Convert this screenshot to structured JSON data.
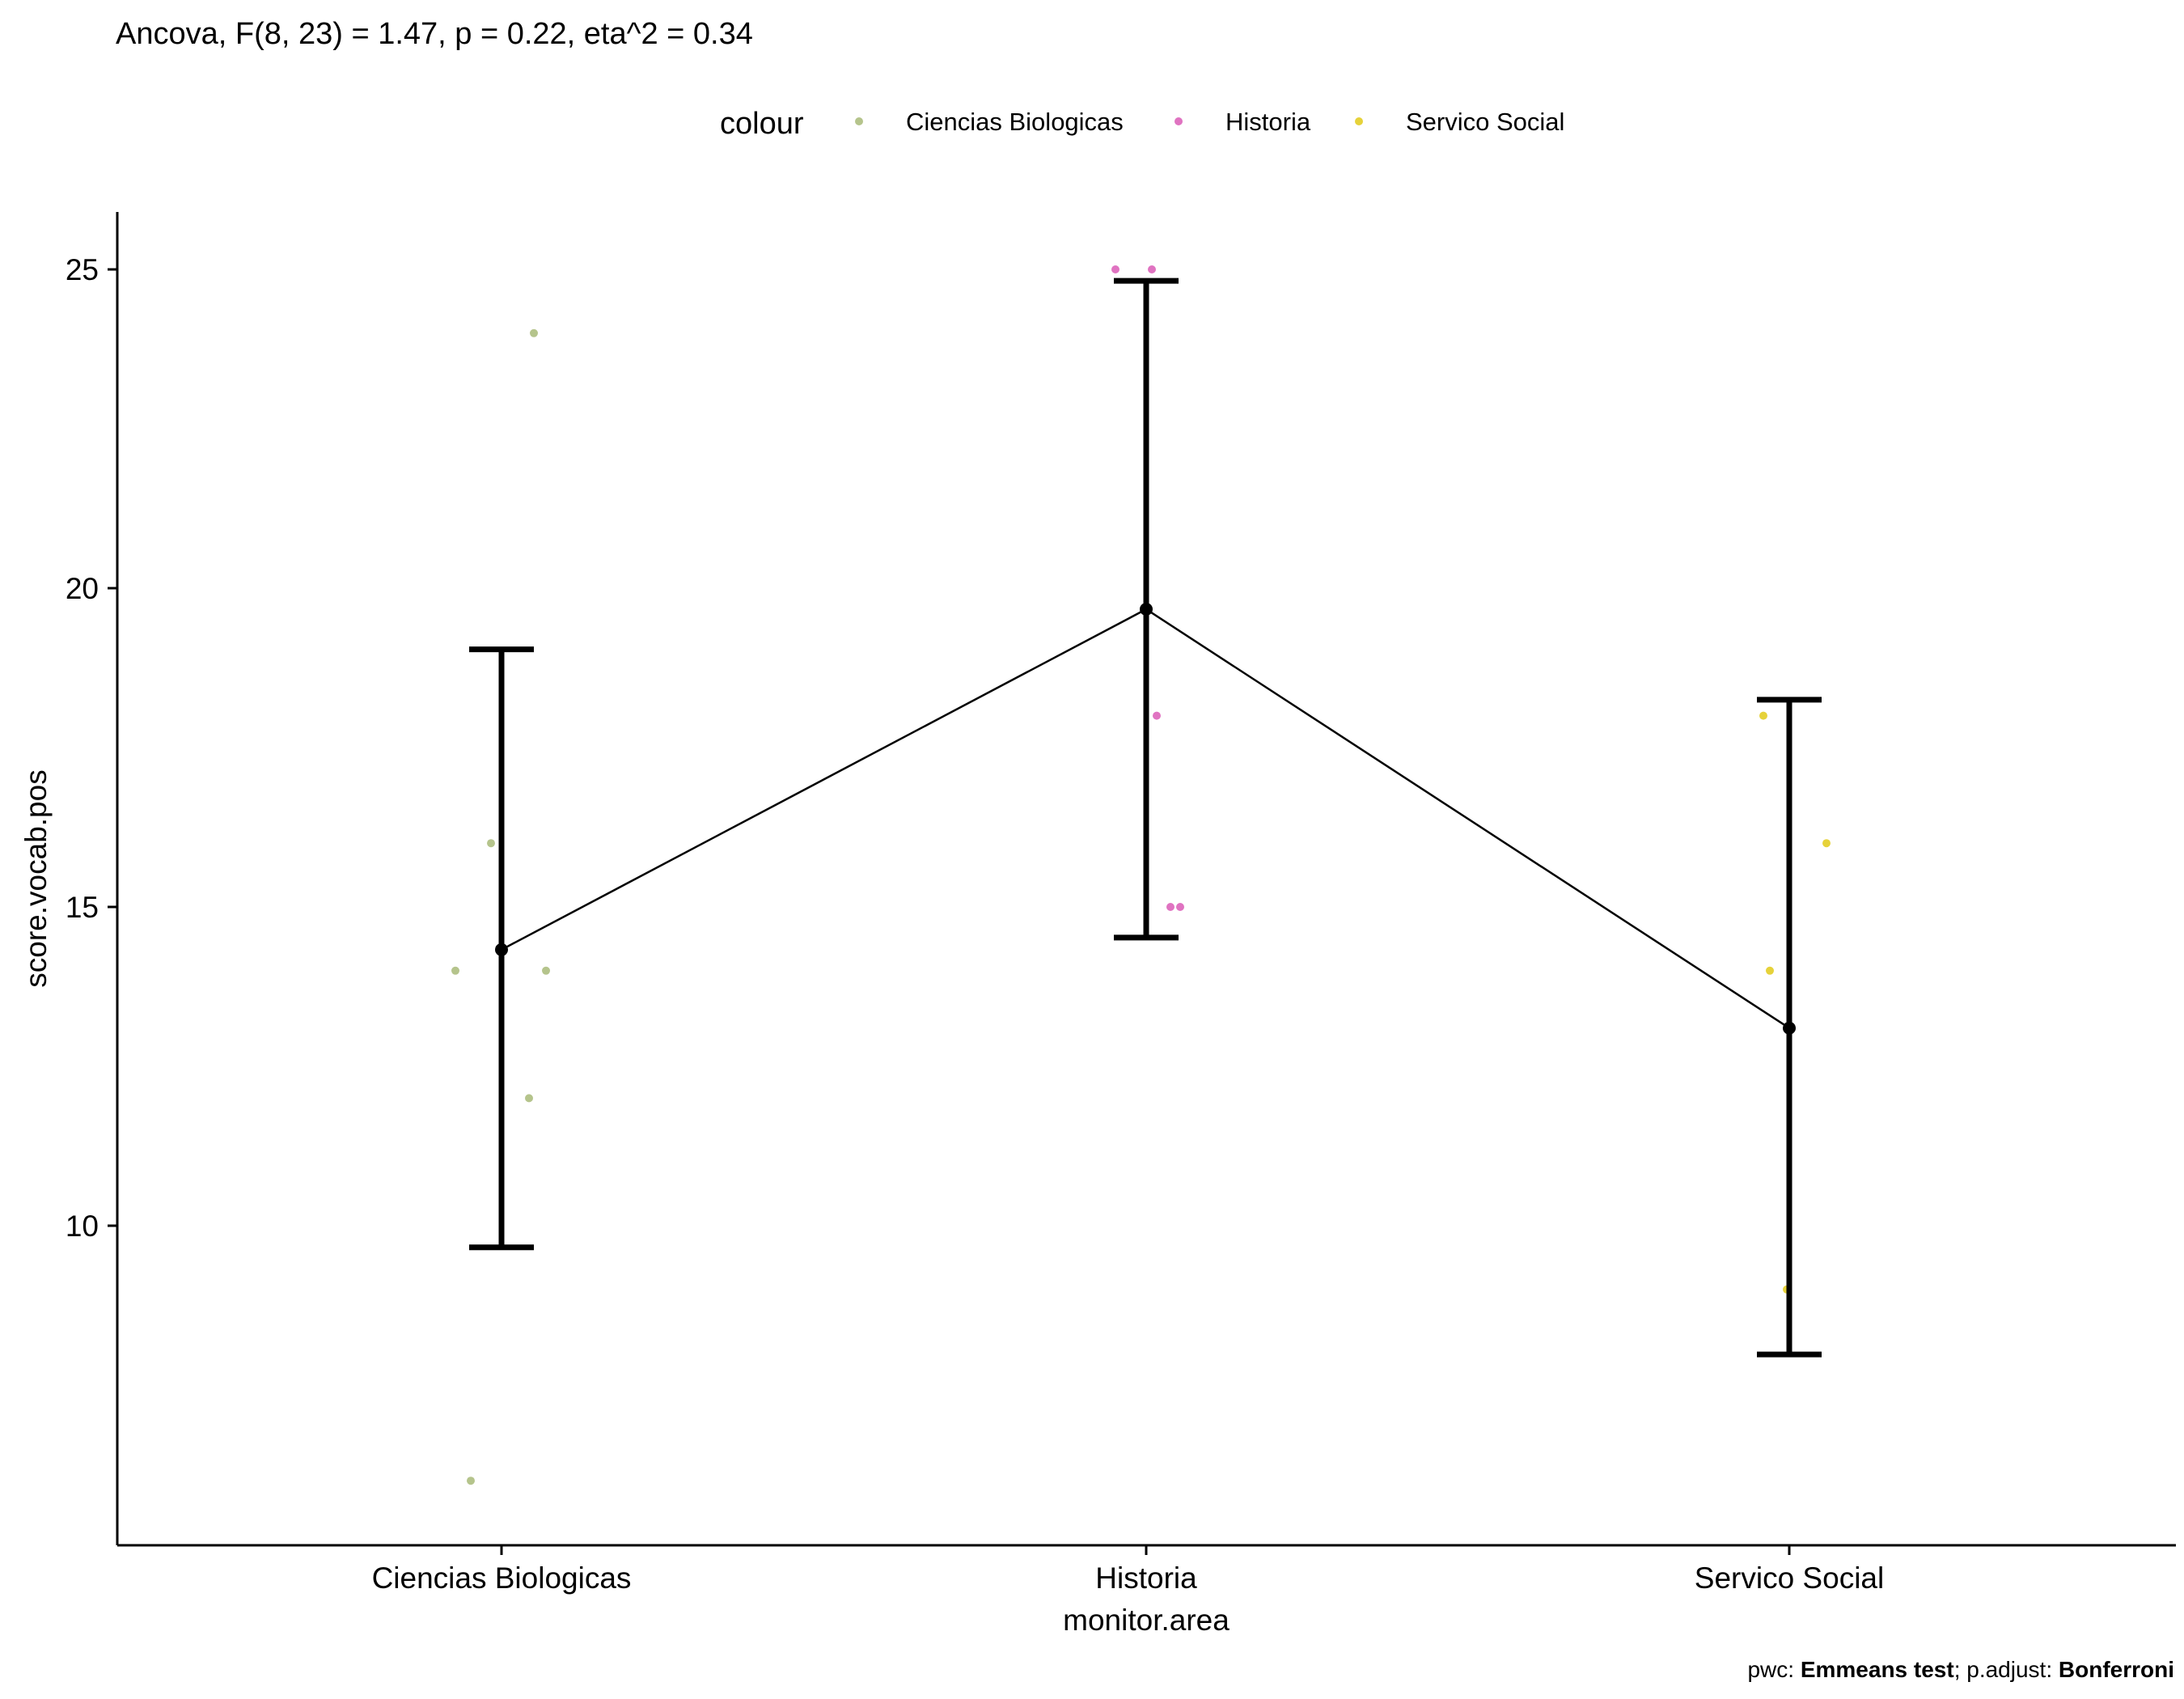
{
  "chart_data": {
    "type": "scatter",
    "title": "Ancova, F(8, 23) = 1.47, p = 0.22, eta^2 = 0.34",
    "xlabel": "monitor.area",
    "ylabel": "score.vocab.pos",
    "categories": [
      "Ciencias Biologicas",
      "Historia",
      "Servico Social"
    ],
    "yticks": [
      "10",
      "15",
      "20",
      "25"
    ],
    "ylim": [
      5.2,
      26.0
    ],
    "legend": {
      "title": "colour",
      "position": "top",
      "items": [
        "Ciencias Biologicas",
        "Historia",
        "Servico Social"
      ]
    },
    "colors": {
      "Ciencias Biologicas": "#b5c48c",
      "Historia": "#e073c1",
      "Servico Social": "#e6d23a",
      "summary": "#000000"
    },
    "means": [
      {
        "category": "Ciencias Biologicas",
        "mean": 14.33,
        "lower": 9.66,
        "upper": 19.04
      },
      {
        "category": "Historia",
        "mean": 19.67,
        "lower": 14.52,
        "upper": 24.82
      },
      {
        "category": "Servico Social",
        "mean": 13.1,
        "lower": 7.98,
        "upper": 18.25
      }
    ],
    "points": [
      {
        "series": "Ciencias Biologicas",
        "x": 0,
        "y": 24.0
      },
      {
        "series": "Ciencias Biologicas",
        "x": 0,
        "y": 16.0
      },
      {
        "series": "Ciencias Biologicas",
        "x": 0,
        "y": 14.0
      },
      {
        "series": "Ciencias Biologicas",
        "x": 0,
        "y": 14.0
      },
      {
        "series": "Ciencias Biologicas",
        "x": 0,
        "y": 12.0
      },
      {
        "series": "Ciencias Biologicas",
        "x": 0,
        "y": 6.0
      },
      {
        "series": "Historia",
        "x": 1,
        "y": 25.0
      },
      {
        "series": "Historia",
        "x": 1,
        "y": 25.0
      },
      {
        "series": "Historia",
        "x": 1,
        "y": 18.0
      },
      {
        "series": "Historia",
        "x": 1,
        "y": 15.0
      },
      {
        "series": "Historia",
        "x": 1,
        "y": 15.0
      },
      {
        "series": "Servico Social",
        "x": 2,
        "y": 18.0
      },
      {
        "series": "Servico Social",
        "x": 2,
        "y": 16.0
      },
      {
        "series": "Servico Social",
        "x": 2,
        "y": 14.0
      },
      {
        "series": "Servico Social",
        "x": 2,
        "y": 9.0
      }
    ],
    "caption": {
      "part1": "pwc: ",
      "part2": "Emmeans test",
      "part3": "; p.adjust: ",
      "part4": "Bonferroni"
    }
  }
}
